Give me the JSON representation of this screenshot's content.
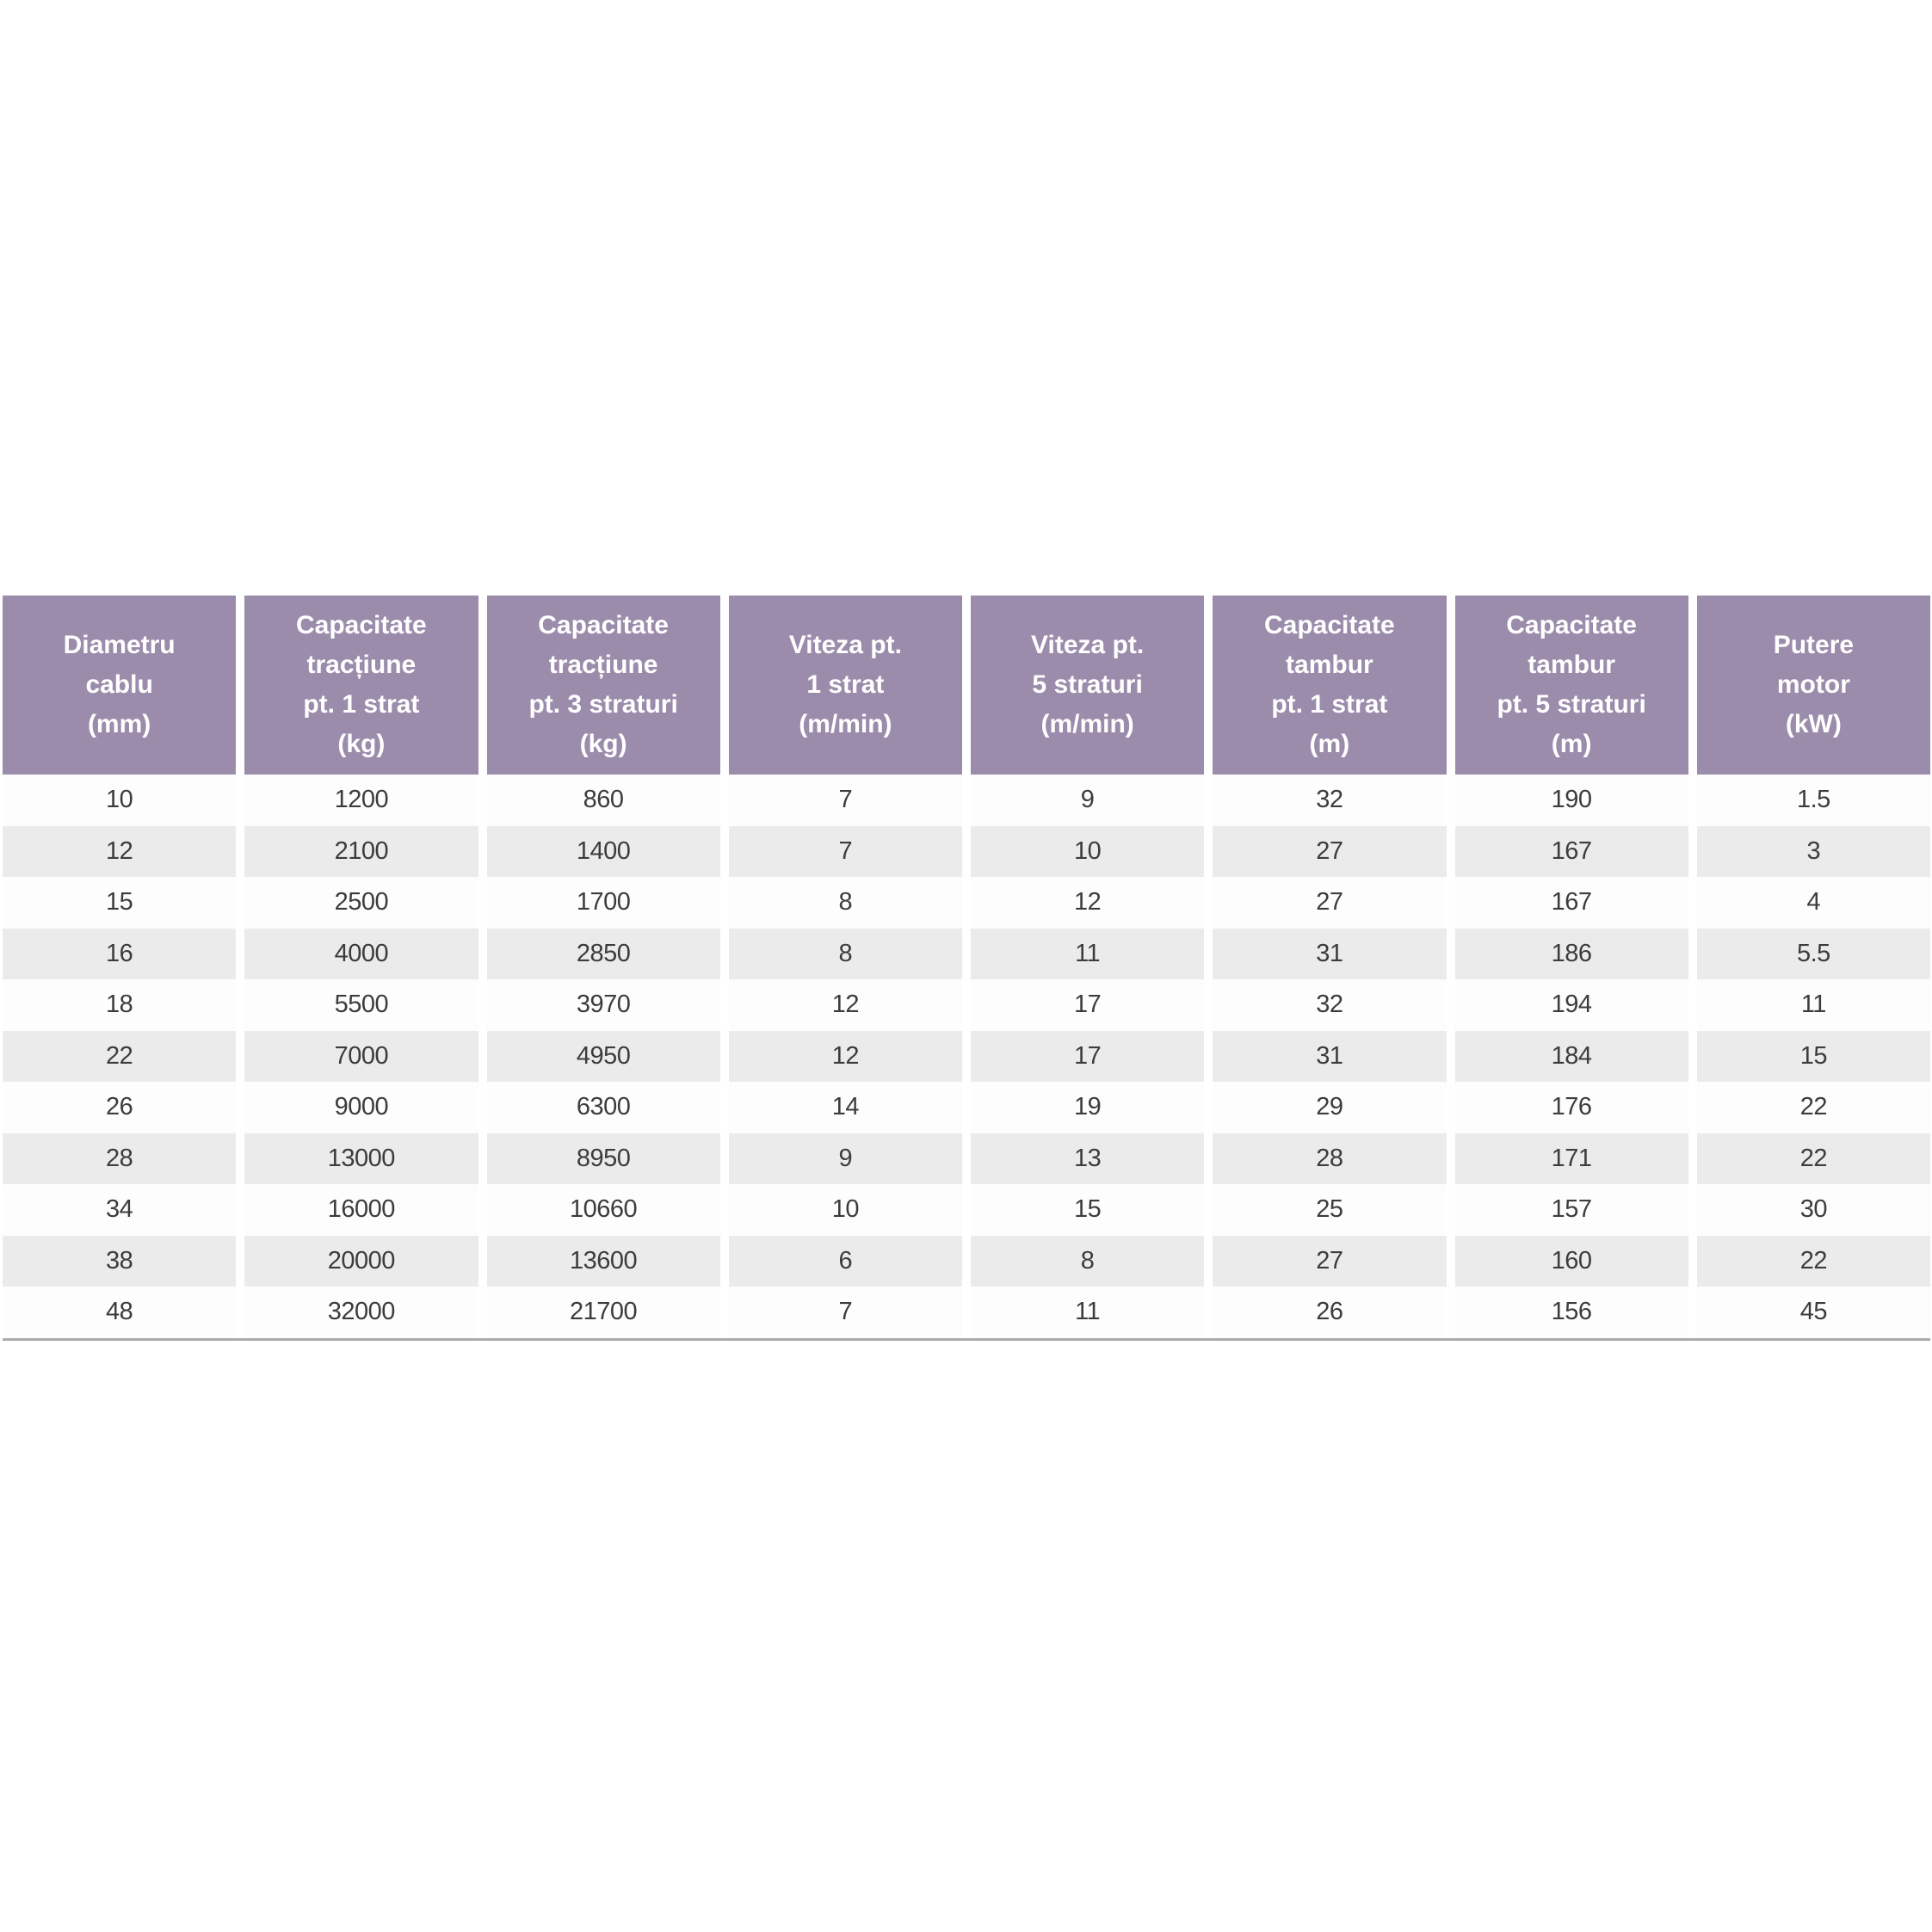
{
  "colors": {
    "header_bg": "#9c8cac",
    "header_text": "#ffffff",
    "row_even_bg": "#fdfdfd",
    "row_odd_bg": "#ebebeb",
    "cell_text": "#3c3c3c",
    "bottom_border": "#ababab",
    "page_bg": "#ffffff"
  },
  "chart_data": {
    "type": "table",
    "columns": [
      "Diametru\ncablu\n(mm)",
      "Capacitate\ntracțiune\npt. 1 strat\n(kg)",
      "Capacitate\ntracțiune\npt. 3 straturi\n(kg)",
      "Viteza pt.\n1 strat\n(m/min)",
      "Viteza pt.\n5 straturi\n(m/min)",
      "Capacitate\ntambur\npt. 1 strat\n(m)",
      "Capacitate\ntambur\npt. 5 straturi\n(m)",
      "Putere\nmotor\n(kW)"
    ],
    "rows": [
      [
        "10",
        "1200",
        "860",
        "7",
        "9",
        "32",
        "190",
        "1.5"
      ],
      [
        "12",
        "2100",
        "1400",
        "7",
        "10",
        "27",
        "167",
        "3"
      ],
      [
        "15",
        "2500",
        "1700",
        "8",
        "12",
        "27",
        "167",
        "4"
      ],
      [
        "16",
        "4000",
        "2850",
        "8",
        "11",
        "31",
        "186",
        "5.5"
      ],
      [
        "18",
        "5500",
        "3970",
        "12",
        "17",
        "32",
        "194",
        "11"
      ],
      [
        "22",
        "7000",
        "4950",
        "12",
        "17",
        "31",
        "184",
        "15"
      ],
      [
        "26",
        "9000",
        "6300",
        "14",
        "19",
        "29",
        "176",
        "22"
      ],
      [
        "28",
        "13000",
        "8950",
        "9",
        "13",
        "28",
        "171",
        "22"
      ],
      [
        "34",
        "16000",
        "10660",
        "10",
        "15",
        "25",
        "157",
        "30"
      ],
      [
        "38",
        "20000",
        "13600",
        "6",
        "8",
        "27",
        "160",
        "22"
      ],
      [
        "48",
        "32000",
        "21700",
        "7",
        "11",
        "26",
        "156",
        "45"
      ]
    ]
  }
}
